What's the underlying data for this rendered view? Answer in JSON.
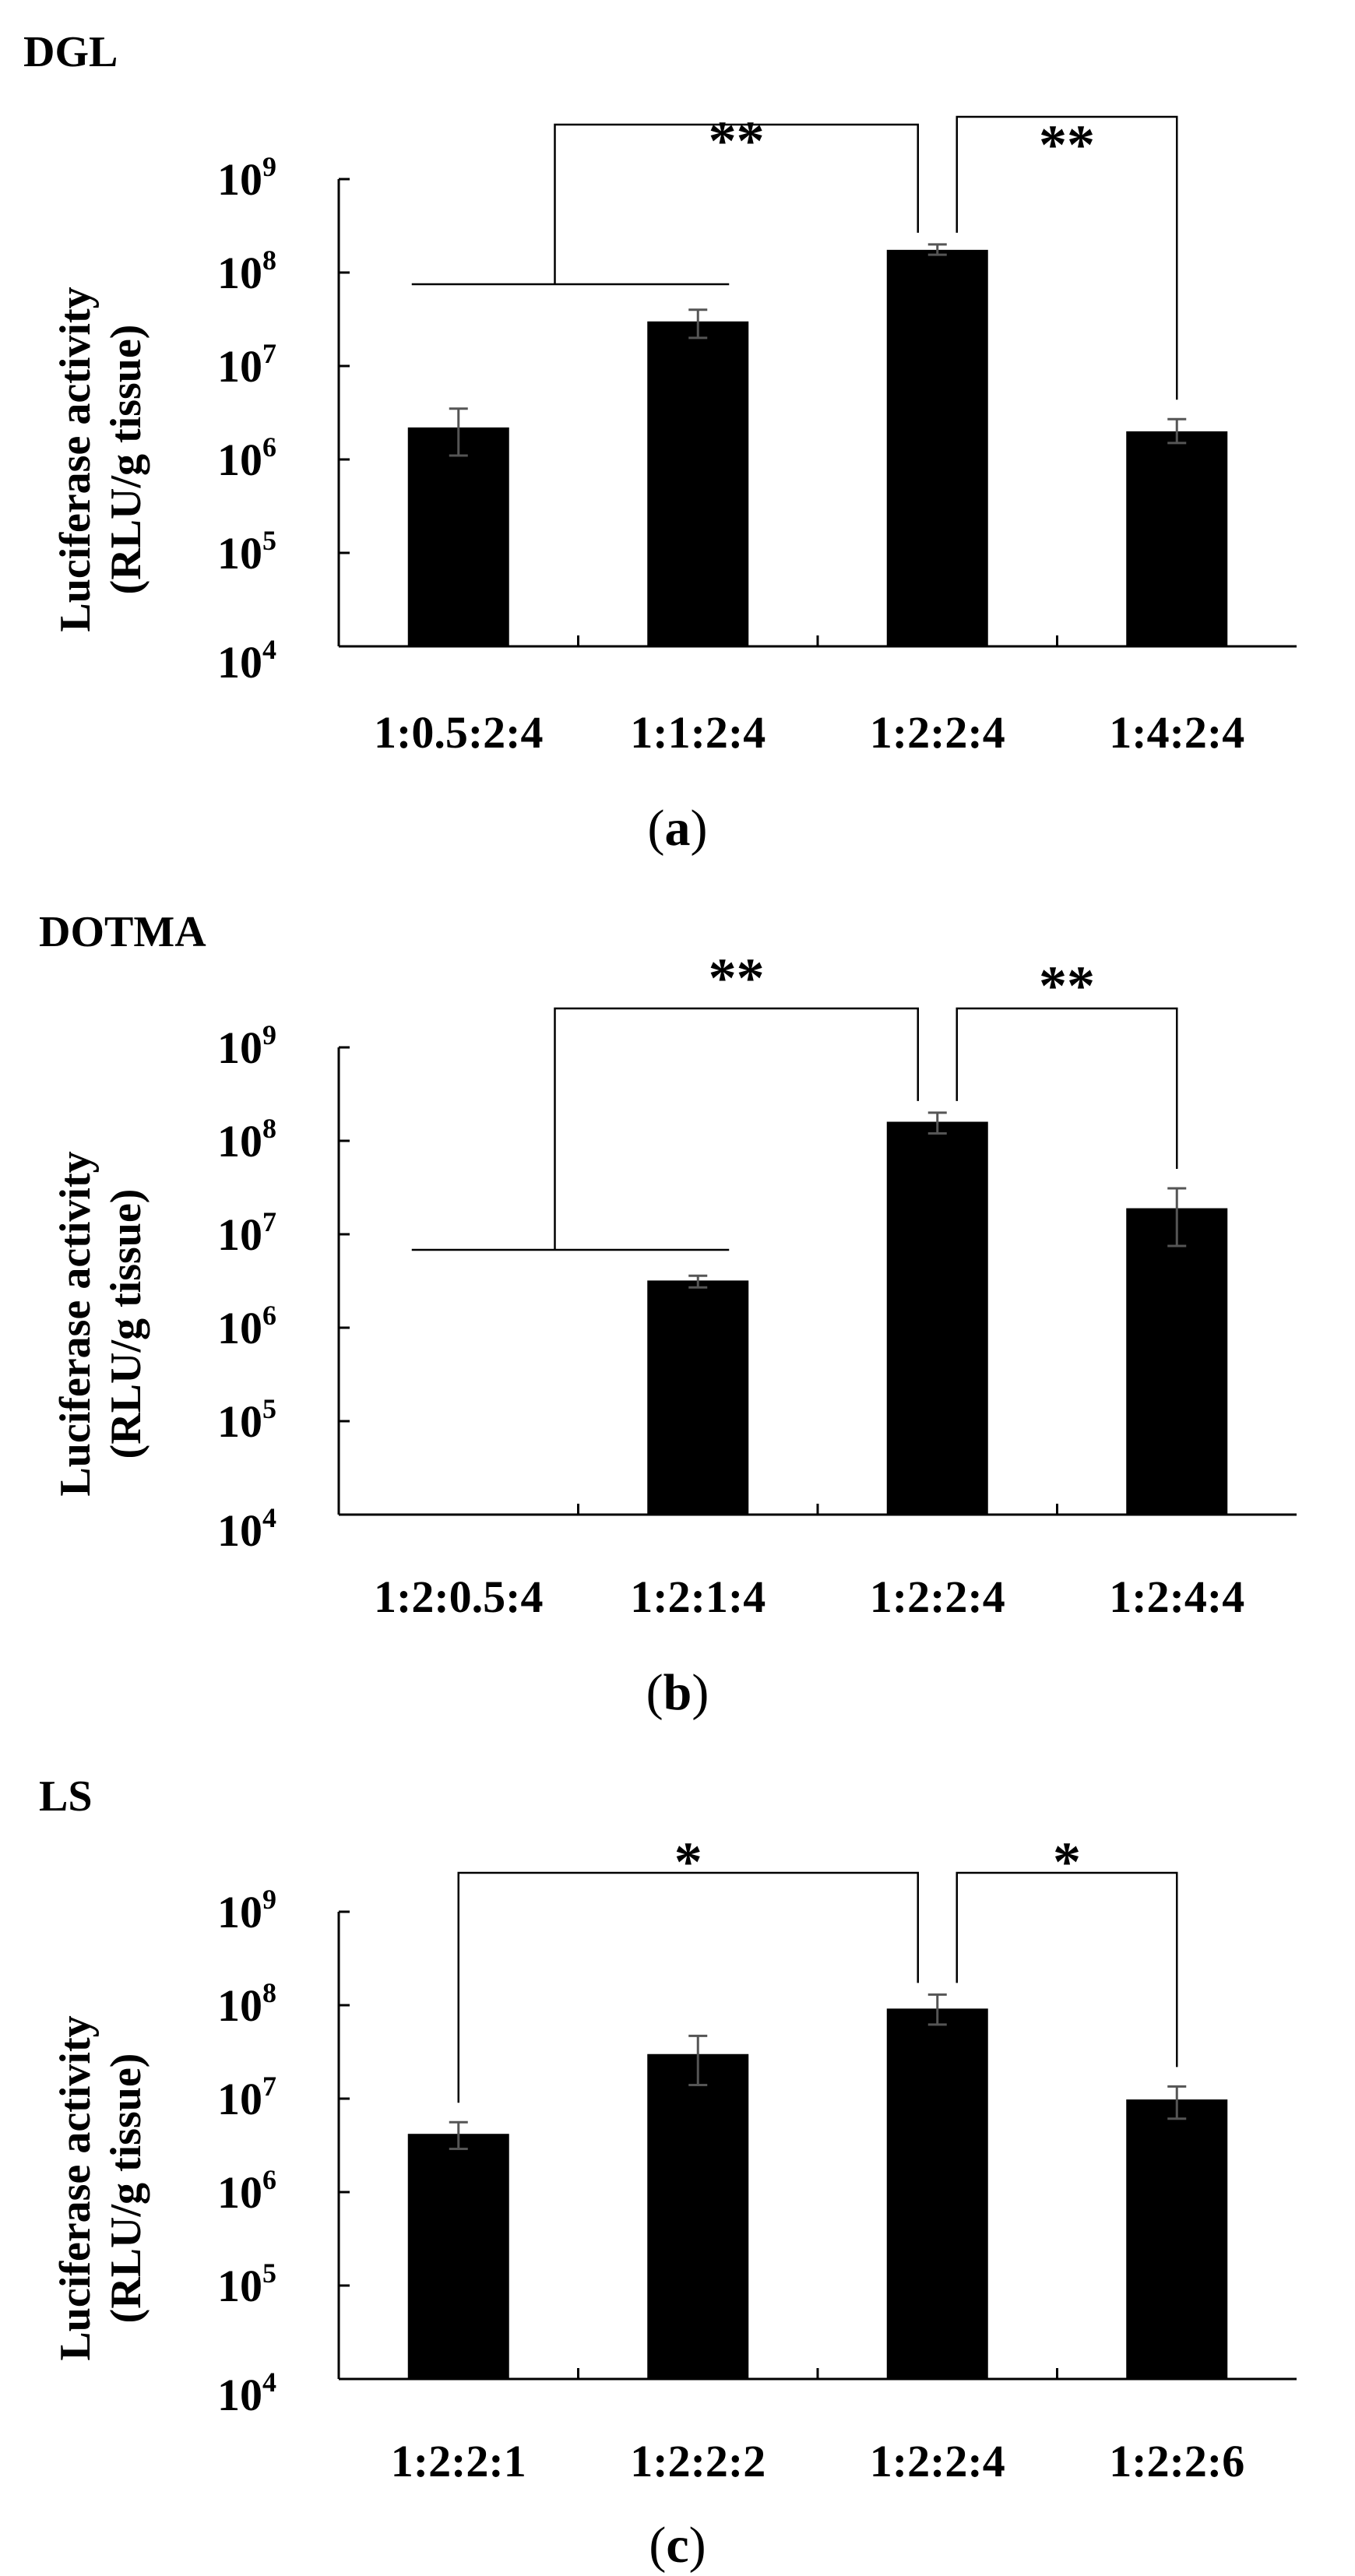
{
  "chart_data": [
    {
      "type": "bar",
      "title": "DGL",
      "panel_label": "a",
      "ylabel": [
        "Luciferase activity",
        "(RLU/g tissue)"
      ],
      "yscale": "log",
      "ylim": [
        10000,
        1000000000
      ],
      "y_ticks": [
        {
          "base": "10",
          "exp": "4"
        },
        {
          "base": "10",
          "exp": "5"
        },
        {
          "base": "10",
          "exp": "6"
        },
        {
          "base": "10",
          "exp": "7"
        },
        {
          "base": "10",
          "exp": "8"
        },
        {
          "base": "10",
          "exp": "9"
        }
      ],
      "categories": [
        "1:0.5:2:4",
        "1:1:2:4",
        "1:2:2:4",
        "1:4:2:4"
      ],
      "values": [
        2200000,
        30000000,
        175000000,
        2000000
      ],
      "errors": [
        [
          1100000,
          3500000
        ],
        [
          20000000,
          40000000
        ],
        [
          155000000,
          200000000
        ],
        [
          1500000,
          2700000
        ]
      ],
      "significance": [
        {
          "label": "**",
          "from": [
            0,
            1
          ],
          "to": 2
        },
        {
          "label": "**",
          "from": [
            3
          ],
          "to": 2
        }
      ]
    },
    {
      "type": "bar",
      "title": "DOTMA",
      "panel_label": "b",
      "ylabel": [
        "Luciferase activity",
        "(RLU/g tissue)"
      ],
      "yscale": "log",
      "ylim": [
        10000,
        1000000000
      ],
      "y_ticks": [
        {
          "base": "10",
          "exp": "4"
        },
        {
          "base": "10",
          "exp": "5"
        },
        {
          "base": "10",
          "exp": "6"
        },
        {
          "base": "10",
          "exp": "7"
        },
        {
          "base": "10",
          "exp": "8"
        },
        {
          "base": "10",
          "exp": "9"
        }
      ],
      "categories": [
        "1:2:0.5:4",
        "1:2:1:4",
        "1:2:2:4",
        "1:2:4:4"
      ],
      "values": [
        null,
        3200000,
        160000000,
        19000000
      ],
      "errors": [
        null,
        [
          2700000,
          3600000
        ],
        [
          120000000,
          200000000
        ],
        [
          7500000,
          31000000
        ]
      ],
      "significance": [
        {
          "label": "**",
          "from": [
            0,
            1
          ],
          "to": 2
        },
        {
          "label": "**",
          "from": [
            3
          ],
          "to": 2
        }
      ]
    },
    {
      "type": "bar",
      "title": "LS",
      "panel_label": "c",
      "ylabel": [
        "Luciferase activity",
        "(RLU/g tissue)"
      ],
      "yscale": "log",
      "ylim": [
        10000,
        1000000000
      ],
      "y_ticks": [
        {
          "base": "10",
          "exp": "4"
        },
        {
          "base": "10",
          "exp": "5"
        },
        {
          "base": "10",
          "exp": "6"
        },
        {
          "base": "10",
          "exp": "7"
        },
        {
          "base": "10",
          "exp": "8"
        },
        {
          "base": "10",
          "exp": "9"
        }
      ],
      "categories": [
        "1:2:2:1",
        "1:2:2:2",
        "1:2:2:4",
        "1:2:2:6"
      ],
      "values": [
        4200000,
        30000000,
        92000000,
        9800000
      ],
      "errors": [
        [
          2900000,
          5600000
        ],
        [
          14000000,
          47000000
        ],
        [
          62000000,
          130000000
        ],
        [
          6100000,
          13500000
        ]
      ],
      "significance": [
        {
          "label": "*",
          "from": [
            0
          ],
          "to": 2
        },
        {
          "label": "*",
          "from": [
            3
          ],
          "to": 2
        }
      ]
    }
  ]
}
